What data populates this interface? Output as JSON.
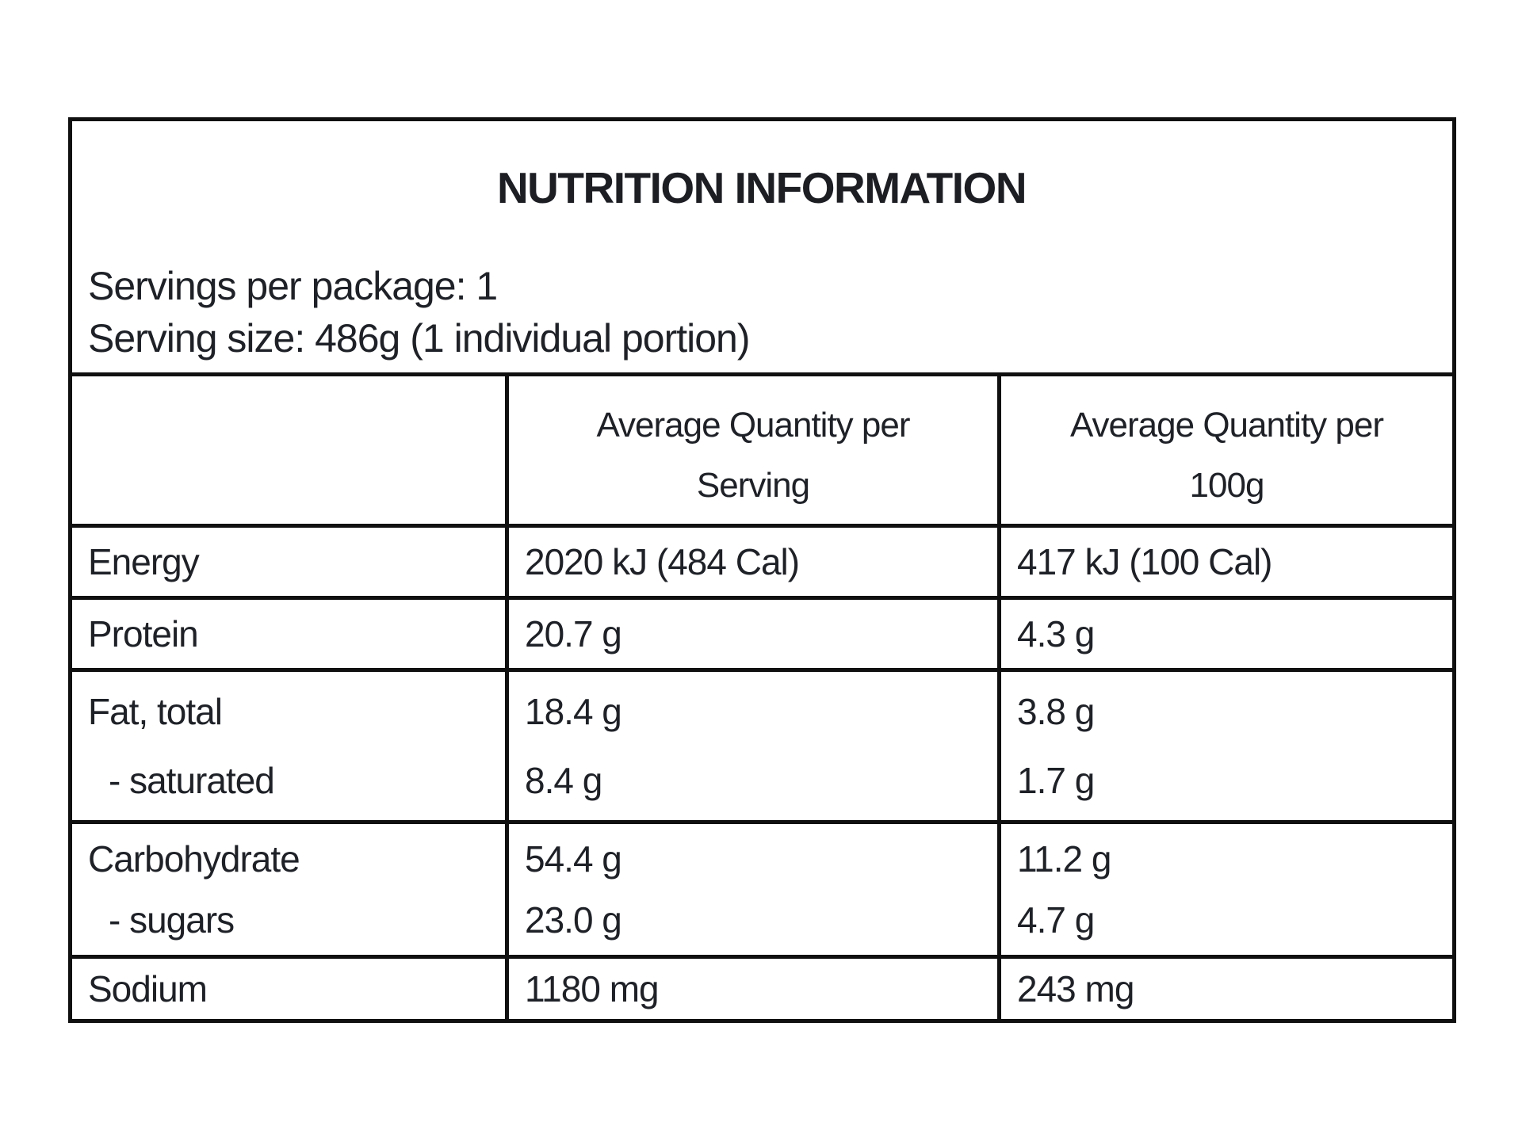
{
  "label": {
    "title": "NUTRITION INFORMATION",
    "servings_per_package": "Servings per package: 1",
    "serving_size": "Serving size: 486g (1 individual portion)"
  },
  "table": {
    "col_headers": {
      "per_serving_line1": "Average Quantity per",
      "per_serving_line2": "Serving",
      "per_100g_line1": "Average Quantity per",
      "per_100g_line2": "100g"
    },
    "rows": [
      {
        "label": "Energy",
        "per_serving": "2020 kJ (484 Cal)",
        "per_100g": "417 kJ (100 Cal)"
      },
      {
        "label": "Protein",
        "per_serving": "20.7 g",
        "per_100g": "4.3 g"
      },
      {
        "label": "Fat, total",
        "per_serving": "18.4 g",
        "per_100g": "3.8 g"
      },
      {
        "label": "- saturated",
        "per_serving": "8.4 g",
        "per_100g": "1.7 g"
      },
      {
        "label": "Carbohydrate",
        "per_serving": "54.4 g",
        "per_100g": "11.2 g"
      },
      {
        "label": "- sugars",
        "per_serving": "23.0 g",
        "per_100g": "4.7 g"
      },
      {
        "label": "Sodium",
        "per_serving": "1180 mg",
        "per_100g": "243 mg"
      }
    ]
  }
}
